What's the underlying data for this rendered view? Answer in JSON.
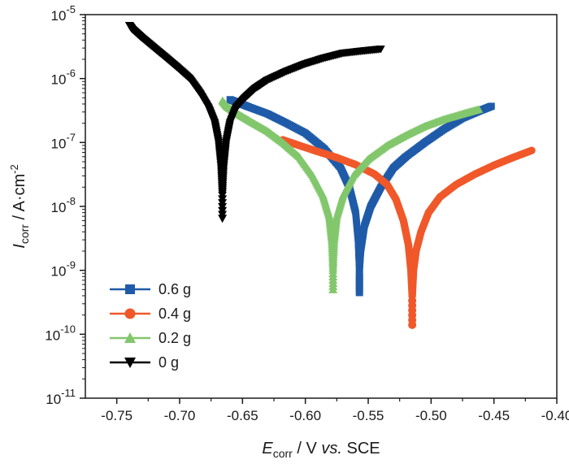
{
  "chart_data": {
    "type": "scatter",
    "title": "",
    "x_axis": {
      "label_main": "E",
      "label_sub": "corr",
      "label_rest": " / V ",
      "label_italic": "vs.",
      "label_tail": " SCE",
      "range": [
        -0.775,
        -0.4
      ],
      "ticks": [
        -0.75,
        -0.7,
        -0.65,
        -0.6,
        -0.55,
        -0.5,
        -0.45,
        -0.4
      ],
      "tick_labels": [
        "-0.75",
        "-0.70",
        "-0.65",
        "-0.60",
        "-0.55",
        "-0.50",
        "-0.45",
        "-0.40"
      ]
    },
    "y_axis": {
      "scale": "log",
      "label_main": "I",
      "label_sub": "corr",
      "label_rest": " / A·cm",
      "label_sup": "-2",
      "range": [
        1e-11,
        1e-05
      ],
      "ticks": [
        1e-11,
        1e-10,
        1e-09,
        1e-08,
        1e-07,
        1e-06,
        1e-05
      ],
      "tick_labels": [
        {
          "base": "10",
          "exp": "-11"
        },
        {
          "base": "10",
          "exp": "-10"
        },
        {
          "base": "10",
          "exp": "-9"
        },
        {
          "base": "10",
          "exp": "-8"
        },
        {
          "base": "10",
          "exp": "-7"
        },
        {
          "base": "10",
          "exp": "-6"
        },
        {
          "base": "10",
          "exp": "-5"
        }
      ]
    },
    "grid": false,
    "legend_position": "bottom-left",
    "series": [
      {
        "name": "0.6 g",
        "color": "#1f5ba8",
        "marker": "square",
        "corrosion_potential": -0.557,
        "min_current": 4.5e-10,
        "anodic_points": [
          [
            -0.557,
            1e-09
          ],
          [
            -0.556,
            2e-09
          ],
          [
            -0.553,
            5e-09
          ],
          [
            -0.548,
            1e-08
          ],
          [
            -0.54,
            2e-08
          ],
          [
            -0.53,
            4e-08
          ],
          [
            -0.52,
            6e-08
          ],
          [
            -0.505,
            1e-07
          ],
          [
            -0.49,
            1.6e-07
          ],
          [
            -0.475,
            2.4e-07
          ],
          [
            -0.46,
            3.2e-07
          ],
          [
            -0.452,
            3.7e-07
          ]
        ],
        "cathodic_points": [
          [
            -0.557,
            1e-09
          ],
          [
            -0.558,
            3e-09
          ],
          [
            -0.56,
            8e-09
          ],
          [
            -0.565,
            2e-08
          ],
          [
            -0.572,
            4e-08
          ],
          [
            -0.585,
            8e-08
          ],
          [
            -0.6,
            1.4e-07
          ],
          [
            -0.615,
            2e-07
          ],
          [
            -0.63,
            2.8e-07
          ],
          [
            -0.645,
            3.6e-07
          ],
          [
            -0.655,
            4.3e-07
          ],
          [
            -0.66,
            4.7e-07
          ]
        ]
      },
      {
        "name": "0.4 g",
        "color": "#f0582a",
        "marker": "circle",
        "corrosion_potential": -0.515,
        "min_current": 1.4e-10,
        "anodic_points": [
          [
            -0.515,
            4e-10
          ],
          [
            -0.514,
            1e-09
          ],
          [
            -0.512,
            2e-09
          ],
          [
            -0.508,
            4e-09
          ],
          [
            -0.502,
            8e-09
          ],
          [
            -0.493,
            1.4e-08
          ],
          [
            -0.48,
            2.2e-08
          ],
          [
            -0.465,
            3.2e-08
          ],
          [
            -0.45,
            4.4e-08
          ],
          [
            -0.435,
            5.8e-08
          ],
          [
            -0.42,
            7.5e-08
          ]
        ],
        "cathodic_points": [
          [
            -0.515,
            4e-10
          ],
          [
            -0.516,
            1e-09
          ],
          [
            -0.518,
            2.5e-09
          ],
          [
            -0.522,
            6e-09
          ],
          [
            -0.528,
            1.3e-08
          ],
          [
            -0.535,
            2.2e-08
          ],
          [
            -0.545,
            3.2e-08
          ],
          [
            -0.56,
            4.5e-08
          ],
          [
            -0.575,
            5.8e-08
          ],
          [
            -0.59,
            7.2e-08
          ],
          [
            -0.605,
            9e-08
          ],
          [
            -0.618,
            1.1e-07
          ]
        ]
      },
      {
        "name": "0.2 g",
        "color": "#82c76c",
        "marker": "triangle",
        "corrosion_potential": -0.578,
        "min_current": 5e-10,
        "anodic_points": [
          [
            -0.578,
            1e-09
          ],
          [
            -0.577,
            3e-09
          ],
          [
            -0.575,
            7e-09
          ],
          [
            -0.57,
            1.5e-08
          ],
          [
            -0.562,
            3e-08
          ],
          [
            -0.55,
            5.5e-08
          ],
          [
            -0.535,
            9e-08
          ],
          [
            -0.52,
            1.3e-07
          ],
          [
            -0.505,
            1.8e-07
          ],
          [
            -0.49,
            2.3e-07
          ],
          [
            -0.475,
            2.8e-07
          ],
          [
            -0.462,
            3.3e-07
          ]
        ],
        "cathodic_points": [
          [
            -0.578,
            1e-09
          ],
          [
            -0.579,
            3e-09
          ],
          [
            -0.581,
            7e-09
          ],
          [
            -0.586,
            1.5e-08
          ],
          [
            -0.594,
            3e-08
          ],
          [
            -0.605,
            6e-08
          ],
          [
            -0.618,
            1e-07
          ],
          [
            -0.63,
            1.5e-07
          ],
          [
            -0.643,
            2.1e-07
          ],
          [
            -0.655,
            2.9e-07
          ],
          [
            -0.662,
            3.6e-07
          ],
          [
            -0.666,
            4.5e-07
          ]
        ]
      },
      {
        "name": "0 g",
        "color": "#000000",
        "marker": "triangle-down",
        "corrosion_potential": -0.666,
        "min_current": 6.5e-09,
        "anodic_points": [
          [
            -0.666,
            1.5e-08
          ],
          [
            -0.665,
            4e-08
          ],
          [
            -0.663,
            1e-07
          ],
          [
            -0.66,
            2e-07
          ],
          [
            -0.655,
            3.5e-07
          ],
          [
            -0.648,
            5e-07
          ],
          [
            -0.64,
            7e-07
          ],
          [
            -0.63,
            9.5e-07
          ],
          [
            -0.615,
            1.3e-06
          ],
          [
            -0.6,
            1.7e-06
          ],
          [
            -0.585,
            2.1e-06
          ],
          [
            -0.57,
            2.5e-06
          ],
          [
            -0.555,
            2.7e-06
          ],
          [
            -0.54,
            2.9e-06
          ]
        ],
        "cathodic_points": [
          [
            -0.666,
            1.5e-08
          ],
          [
            -0.667,
            4e-08
          ],
          [
            -0.669,
            1e-07
          ],
          [
            -0.672,
            2e-07
          ],
          [
            -0.677,
            3.5e-07
          ],
          [
            -0.684,
            6e-07
          ],
          [
            -0.692,
            1e-06
          ],
          [
            -0.702,
            1.5e-06
          ],
          [
            -0.712,
            2.2e-06
          ],
          [
            -0.722,
            3.2e-06
          ],
          [
            -0.731,
            4.5e-06
          ],
          [
            -0.738,
            6e-06
          ],
          [
            -0.74,
            6.8e-06
          ]
        ]
      }
    ]
  }
}
